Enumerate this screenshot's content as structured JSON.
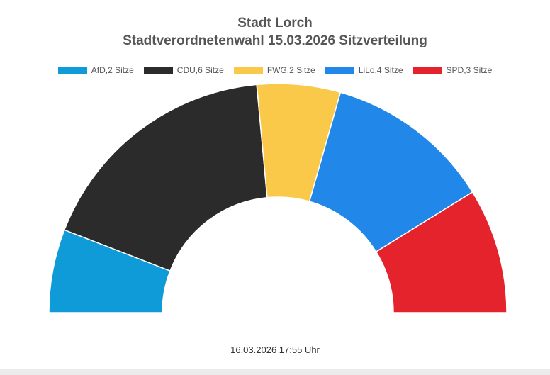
{
  "chart_data": {
    "type": "parliament",
    "title": "Stadt Lorch",
    "subtitle": "Stadtverordnetenwahl 15.03.2026 Sitzverteilung",
    "series": [
      {
        "name": "AfD",
        "seats": 2,
        "label": "AfD,2 Sitze",
        "color": "#0f9ad8"
      },
      {
        "name": "CDU",
        "seats": 6,
        "label": "CDU,6 Sitze",
        "color": "#2b2b2b"
      },
      {
        "name": "FWG",
        "seats": 2,
        "label": "FWG,2 Sitze",
        "color": "#fbc94a"
      },
      {
        "name": "LiLo",
        "seats": 4,
        "label": "LiLo,4 Sitze",
        "color": "#2187e8"
      },
      {
        "name": "SPD",
        "seats": 3,
        "label": "SPD,3 Sitze",
        "color": "#e5232d"
      }
    ],
    "total_seats": 17,
    "timestamp": "16.03.2026 17:55 Uhr"
  }
}
